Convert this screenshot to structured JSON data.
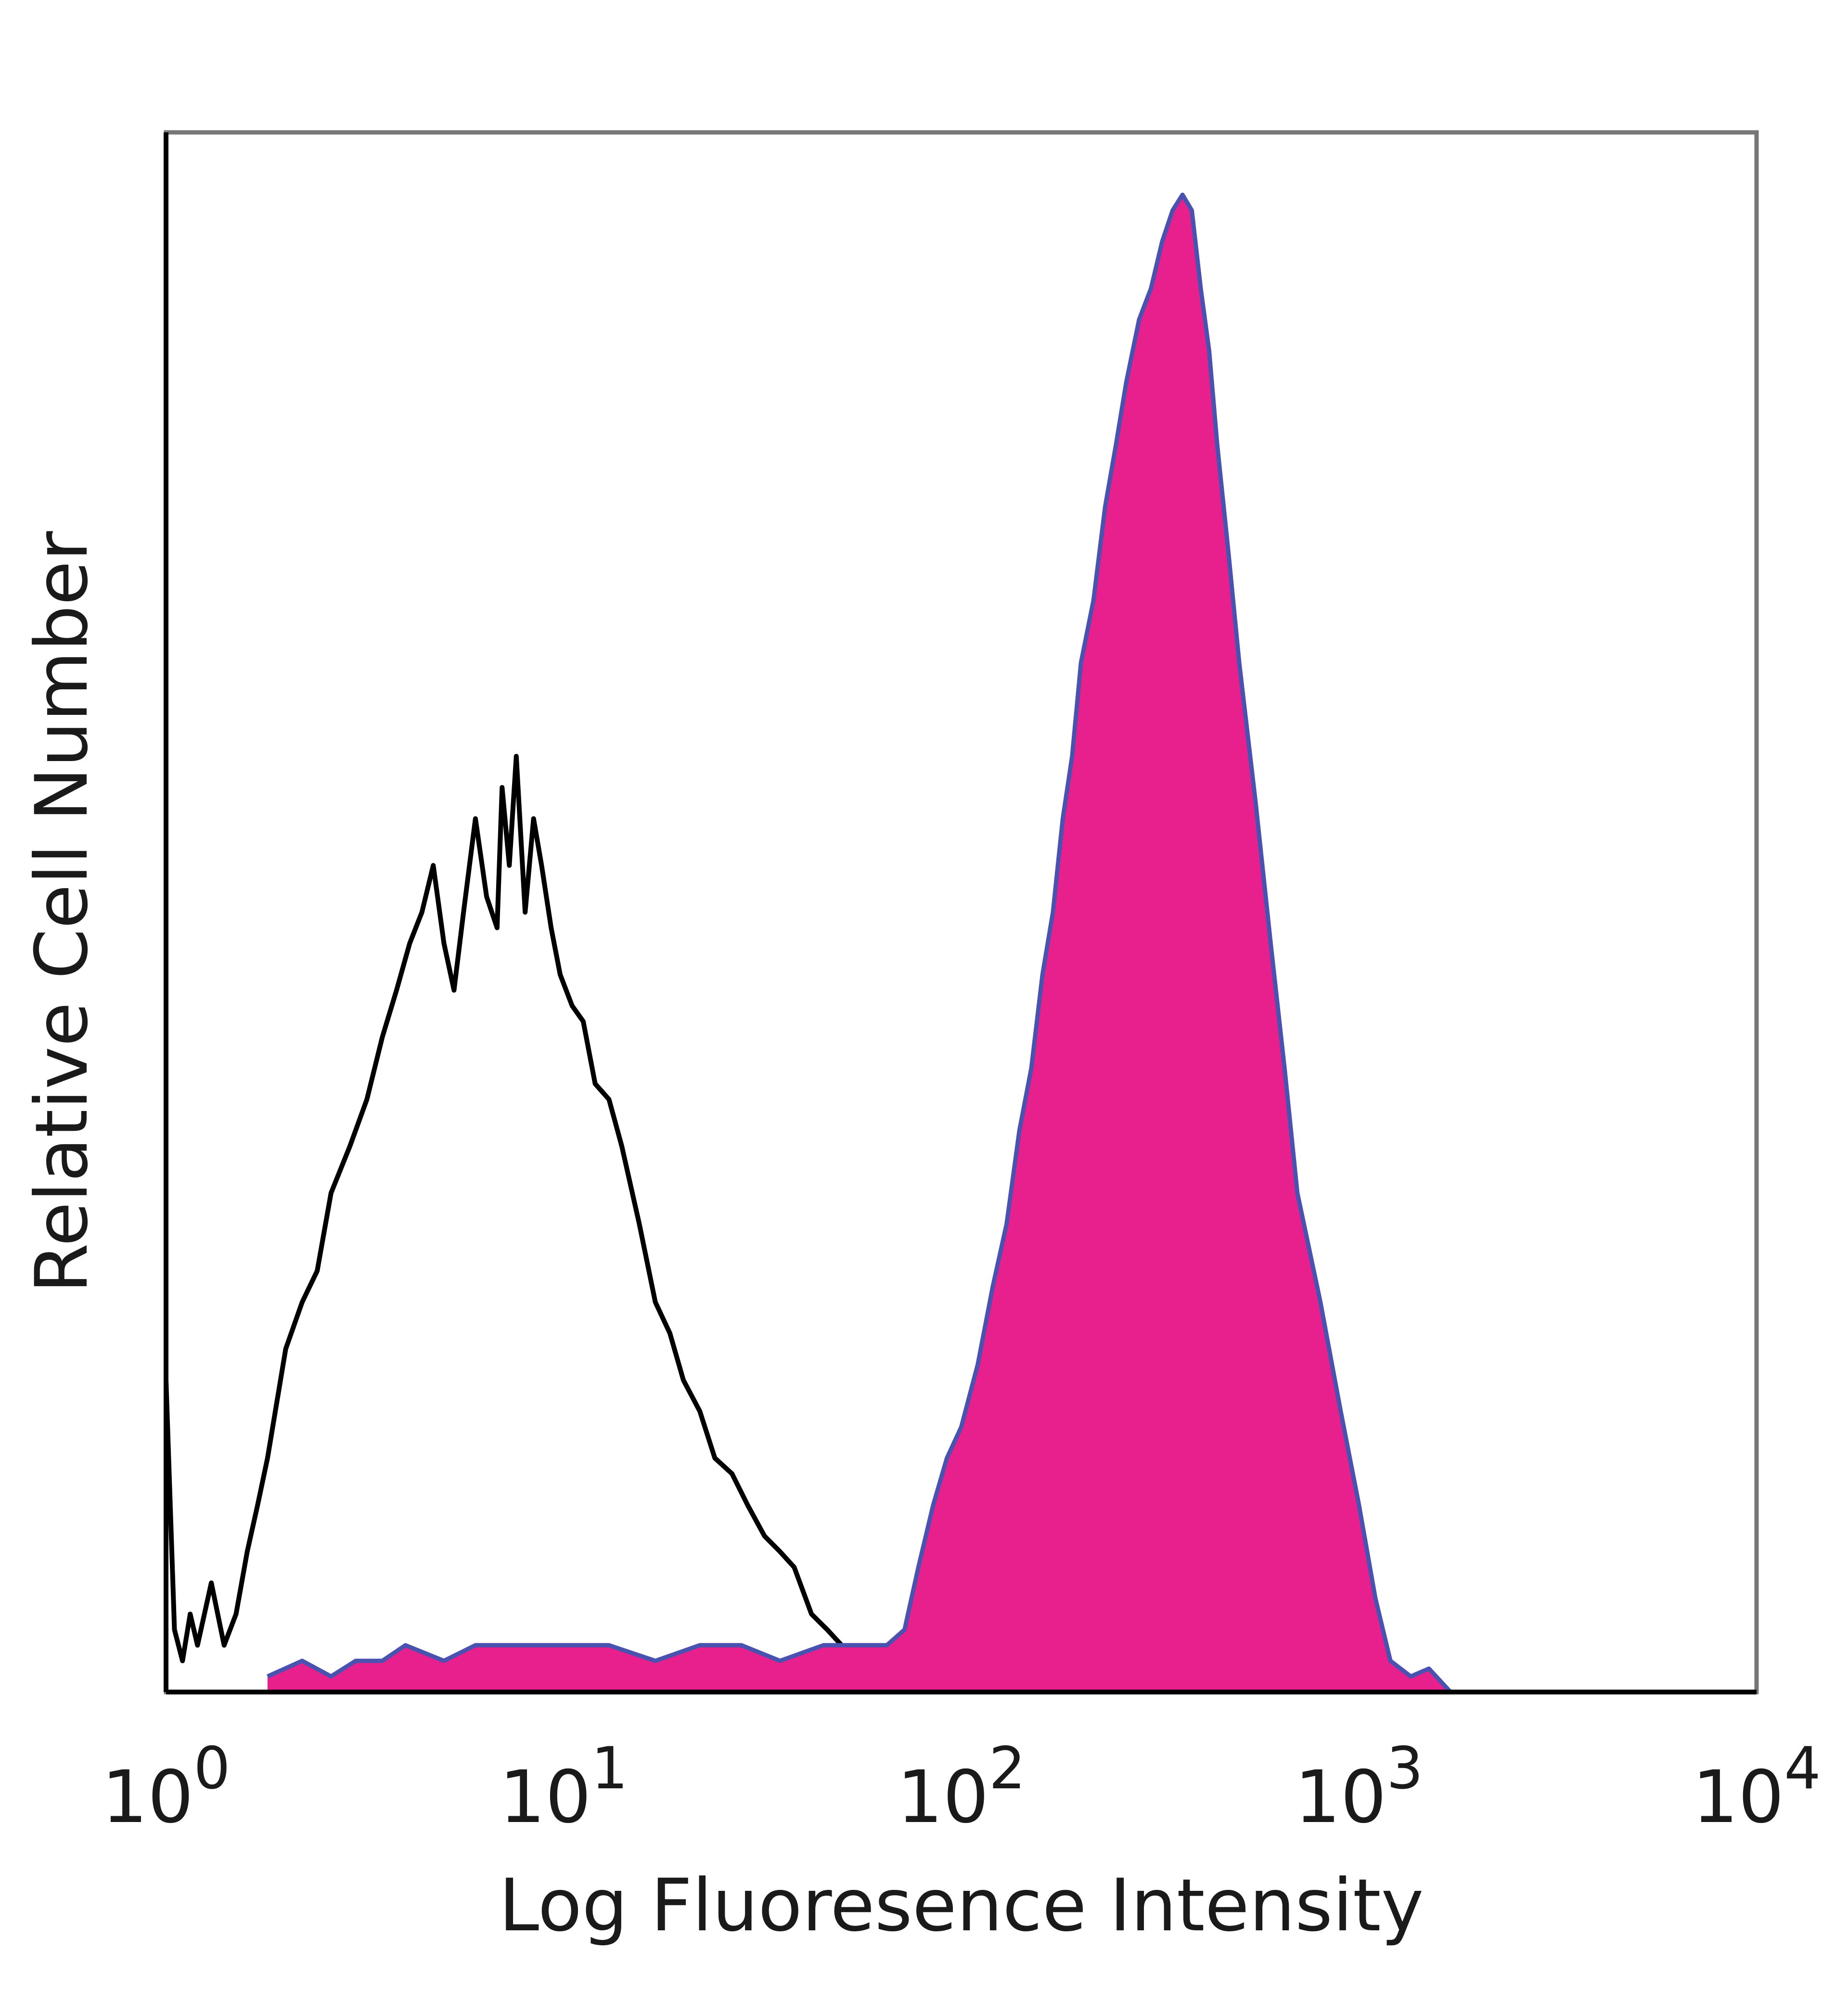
{
  "chart_data": {
    "type": "area",
    "title": "",
    "xlabel": "Log Fluoresence Intensity",
    "ylabel": "Relative Cell Number",
    "x_scale": "log",
    "xlim": [
      1,
      10000
    ],
    "ylim": [
      0,
      1.0
    ],
    "x_ticks": [
      {
        "value": 1,
        "base": "10",
        "exp": "0"
      },
      {
        "value": 10,
        "base": "10",
        "exp": "1"
      },
      {
        "value": 100,
        "base": "10",
        "exp": "2"
      },
      {
        "value": 1000,
        "base": "10",
        "exp": "3"
      },
      {
        "value": 10000,
        "base": "10",
        "exp": "4"
      }
    ],
    "grid": false,
    "legend": "none",
    "colors": {
      "stained_fill": "#E8208E",
      "stained_outline": "#4A52B0",
      "control_line": "#000000",
      "frame": "#777777"
    },
    "series": [
      {
        "style": "line",
        "x": [
          1.0,
          1.05,
          1.1,
          1.15,
          1.2,
          1.3,
          1.4,
          1.5,
          1.6,
          1.7,
          1.8,
          2.0,
          2.2,
          2.4,
          2.6,
          2.9,
          3.2,
          3.5,
          3.8,
          4.1,
          4.4,
          4.7,
          5.0,
          5.3,
          5.6,
          6.0,
          6.4,
          6.8,
          7.0,
          7.3,
          7.6,
          8.0,
          8.4,
          8.8,
          9.3,
          9.8,
          10.5,
          11.2,
          12.0,
          13.0,
          14.0,
          15.5,
          17.0,
          18.5,
          20.0,
          22.0,
          24.0,
          26.5,
          29.0,
          32.0,
          35.0,
          38.0,
          42.0,
          46.0,
          50.0,
          55.0,
          60.0,
          65.0,
          70.0,
          75.0,
          85.0,
          100.0,
          115.0,
          130.0,
          150.0
        ],
        "values": [
          0.2,
          0.04,
          0.02,
          0.05,
          0.03,
          0.07,
          0.03,
          0.05,
          0.09,
          0.12,
          0.15,
          0.22,
          0.25,
          0.27,
          0.32,
          0.35,
          0.38,
          0.42,
          0.45,
          0.48,
          0.5,
          0.53,
          0.48,
          0.45,
          0.5,
          0.56,
          0.51,
          0.49,
          0.58,
          0.53,
          0.6,
          0.5,
          0.56,
          0.53,
          0.49,
          0.46,
          0.44,
          0.43,
          0.39,
          0.38,
          0.35,
          0.3,
          0.25,
          0.23,
          0.2,
          0.18,
          0.15,
          0.14,
          0.12,
          0.1,
          0.09,
          0.08,
          0.05,
          0.04,
          0.03,
          0.028,
          0.025,
          0.03,
          0.025,
          0.015,
          0.02,
          0.015,
          0.01,
          0.012,
          0.0
        ]
      },
      {
        "style": "filled",
        "x": [
          1.8,
          2.2,
          2.6,
          3.0,
          3.5,
          4.0,
          5.0,
          6.0,
          8.0,
          10.0,
          13.0,
          17.0,
          22.0,
          28.0,
          35.0,
          45.0,
          55.0,
          65.0,
          72.0,
          78.0,
          85.0,
          92.0,
          100.0,
          110.0,
          120.0,
          130.0,
          140.0,
          150.0,
          160.0,
          170.0,
          180.0,
          190.0,
          200.0,
          215.0,
          230.0,
          245.0,
          260.0,
          280.0,
          300.0,
          320.0,
          340.0,
          360.0,
          380.0,
          400.0,
          420.0,
          440.0,
          470.0,
          500.0,
          550.0,
          600.0,
          650.0,
          700.0,
          800.0,
          900.0,
          1000.0,
          1100.0,
          1200.0,
          1350.0,
          1500.0,
          1700.0
        ],
        "values": [
          0.01,
          0.02,
          0.01,
          0.02,
          0.02,
          0.03,
          0.02,
          0.03,
          0.03,
          0.03,
          0.03,
          0.02,
          0.03,
          0.03,
          0.02,
          0.03,
          0.03,
          0.03,
          0.04,
          0.08,
          0.12,
          0.15,
          0.17,
          0.21,
          0.26,
          0.3,
          0.36,
          0.4,
          0.46,
          0.5,
          0.56,
          0.6,
          0.66,
          0.7,
          0.76,
          0.8,
          0.84,
          0.88,
          0.9,
          0.93,
          0.95,
          0.96,
          0.95,
          0.9,
          0.86,
          0.8,
          0.73,
          0.66,
          0.57,
          0.48,
          0.4,
          0.32,
          0.25,
          0.18,
          0.12,
          0.06,
          0.02,
          0.01,
          0.015,
          0.0
        ]
      }
    ]
  }
}
